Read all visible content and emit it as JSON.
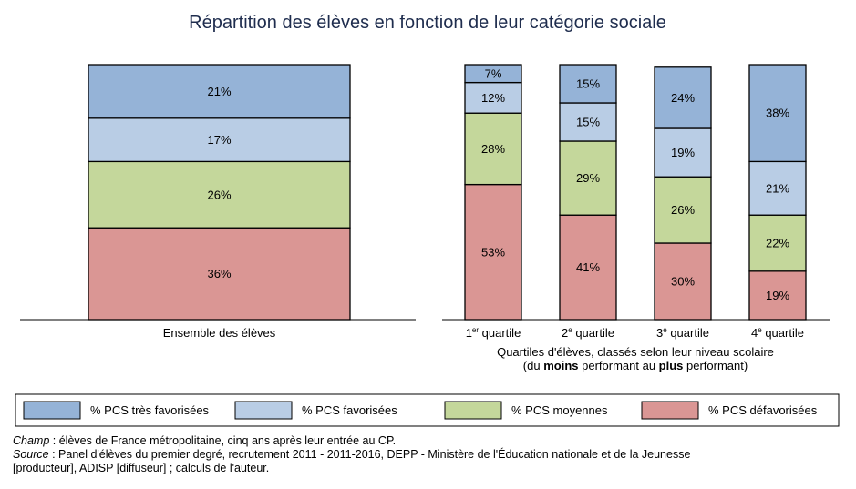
{
  "chart_data": {
    "type": "bar",
    "stacked": true,
    "title": "Répartition des élèves en fonction de leur catégorie sociale",
    "series": [
      {
        "name": "% PCS très favorisées",
        "color": "#95b3d7",
        "values": [
          21,
          7,
          15,
          24,
          38
        ]
      },
      {
        "name": "% PCS favorisées",
        "color": "#b9cde5",
        "values": [
          17,
          12,
          15,
          19,
          21
        ]
      },
      {
        "name": "% PCS moyennes",
        "color": "#c4d79b",
        "values": [
          26,
          28,
          29,
          26,
          22
        ]
      },
      {
        "name": "% PCS défavorisées",
        "color": "#da9694",
        "values": [
          36,
          53,
          41,
          30,
          19
        ]
      }
    ],
    "panels": [
      {
        "categories": [
          {
            "label": "Ensemble des élèves",
            "sup": "",
            "rest": ""
          }
        ],
        "xlabel_line1": "",
        "xlabel_line2": []
      },
      {
        "categories": [
          {
            "label": "1",
            "sup": "er",
            "rest": " quartile"
          },
          {
            "label": "2",
            "sup": "e",
            "rest": " quartile"
          },
          {
            "label": "3",
            "sup": "e",
            "rest": " quartile"
          },
          {
            "label": "4",
            "sup": "e",
            "rest": " quartile"
          }
        ],
        "xlabel_line1": "Quartiles d'élèves, classés selon leur niveau scolaire",
        "xlabel_line2": [
          {
            "text": "(du ",
            "bold": false
          },
          {
            "text": "moins",
            "bold": true
          },
          {
            "text": " performant au ",
            "bold": false
          },
          {
            "text": "plus",
            "bold": true
          },
          {
            "text": " performant)",
            "bold": false
          }
        ]
      }
    ],
    "value_suffix": "%",
    "legend_position": "bottom"
  },
  "notes": {
    "champ_label": "Champ",
    "champ_text": " : élèves de France métropolitaine, cinq ans après leur entrée au CP.",
    "source_label": "Source",
    "source_text": " : Panel d'élèves du premier degré, recrutement 2011 - 2011-2016, DEPP - Ministère de l'Éducation nationale et de la Jeunesse",
    "source_text_2": "[producteur], ADISP [diffuseur] ; calculs de l'auteur."
  },
  "colors": {
    "title": "#1f2d4e",
    "bar_stroke": "#000000"
  }
}
